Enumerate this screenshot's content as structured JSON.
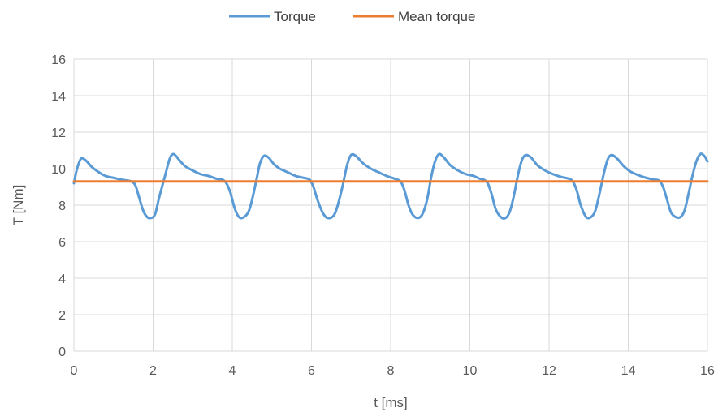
{
  "chart_data": {
    "type": "line",
    "xlabel": "t [ms]",
    "ylabel": "T [Nm]",
    "xlim": [
      0,
      16
    ],
    "ylim": [
      0,
      16
    ],
    "x_ticks": [
      0,
      2,
      4,
      6,
      8,
      10,
      12,
      14,
      16
    ],
    "y_ticks": [
      0,
      2,
      4,
      6,
      8,
      10,
      12,
      14,
      16
    ],
    "grid": true,
    "legend_position": "top-center",
    "series": [
      {
        "name": "Torque",
        "color": "#5b9bd5",
        "points": [
          [
            0.0,
            9.2
          ],
          [
            0.08,
            10.0
          ],
          [
            0.18,
            10.55
          ],
          [
            0.3,
            10.45
          ],
          [
            0.45,
            10.1
          ],
          [
            0.6,
            9.85
          ],
          [
            0.8,
            9.6
          ],
          [
            1.0,
            9.5
          ],
          [
            1.2,
            9.4
          ],
          [
            1.35,
            9.35
          ],
          [
            1.45,
            9.3
          ],
          [
            1.55,
            9.1
          ],
          [
            1.65,
            8.4
          ],
          [
            1.75,
            7.7
          ],
          [
            1.85,
            7.35
          ],
          [
            1.95,
            7.3
          ],
          [
            2.05,
            7.5
          ],
          [
            2.15,
            8.4
          ],
          [
            2.3,
            9.6
          ],
          [
            2.42,
            10.55
          ],
          [
            2.52,
            10.8
          ],
          [
            2.65,
            10.5
          ],
          [
            2.8,
            10.15
          ],
          [
            3.0,
            9.9
          ],
          [
            3.2,
            9.7
          ],
          [
            3.4,
            9.6
          ],
          [
            3.6,
            9.45
          ],
          [
            3.75,
            9.4
          ],
          [
            3.85,
            9.2
          ],
          [
            3.95,
            8.7
          ],
          [
            4.05,
            7.9
          ],
          [
            4.15,
            7.4
          ],
          [
            4.25,
            7.3
          ],
          [
            4.4,
            7.6
          ],
          [
            4.5,
            8.3
          ],
          [
            4.62,
            9.5
          ],
          [
            4.7,
            10.3
          ],
          [
            4.8,
            10.7
          ],
          [
            4.92,
            10.6
          ],
          [
            5.05,
            10.25
          ],
          [
            5.2,
            10.0
          ],
          [
            5.4,
            9.8
          ],
          [
            5.6,
            9.6
          ],
          [
            5.8,
            9.5
          ],
          [
            5.95,
            9.4
          ],
          [
            6.05,
            9.0
          ],
          [
            6.15,
            8.3
          ],
          [
            6.28,
            7.6
          ],
          [
            6.4,
            7.3
          ],
          [
            6.55,
            7.4
          ],
          [
            6.65,
            7.9
          ],
          [
            6.78,
            9.0
          ],
          [
            6.9,
            10.2
          ],
          [
            7.0,
            10.75
          ],
          [
            7.12,
            10.7
          ],
          [
            7.3,
            10.3
          ],
          [
            7.5,
            10.0
          ],
          [
            7.7,
            9.8
          ],
          [
            7.9,
            9.6
          ],
          [
            8.1,
            9.45
          ],
          [
            8.25,
            9.3
          ],
          [
            8.35,
            8.8
          ],
          [
            8.45,
            8.0
          ],
          [
            8.55,
            7.5
          ],
          [
            8.68,
            7.3
          ],
          [
            8.8,
            7.5
          ],
          [
            8.92,
            8.3
          ],
          [
            9.02,
            9.5
          ],
          [
            9.12,
            10.4
          ],
          [
            9.22,
            10.8
          ],
          [
            9.35,
            10.6
          ],
          [
            9.5,
            10.2
          ],
          [
            9.7,
            9.9
          ],
          [
            9.9,
            9.7
          ],
          [
            10.1,
            9.6
          ],
          [
            10.25,
            9.45
          ],
          [
            10.35,
            9.4
          ],
          [
            10.45,
            9.2
          ],
          [
            10.55,
            8.6
          ],
          [
            10.65,
            7.8
          ],
          [
            10.78,
            7.35
          ],
          [
            10.9,
            7.3
          ],
          [
            11.0,
            7.6
          ],
          [
            11.1,
            8.4
          ],
          [
            11.22,
            9.7
          ],
          [
            11.32,
            10.5
          ],
          [
            11.42,
            10.75
          ],
          [
            11.55,
            10.6
          ],
          [
            11.7,
            10.2
          ],
          [
            11.9,
            9.9
          ],
          [
            12.1,
            9.7
          ],
          [
            12.3,
            9.55
          ],
          [
            12.5,
            9.45
          ],
          [
            12.6,
            9.3
          ],
          [
            12.7,
            8.8
          ],
          [
            12.8,
            8.0
          ],
          [
            12.92,
            7.4
          ],
          [
            13.02,
            7.3
          ],
          [
            13.15,
            7.6
          ],
          [
            13.25,
            8.4
          ],
          [
            13.38,
            9.7
          ],
          [
            13.48,
            10.5
          ],
          [
            13.58,
            10.75
          ],
          [
            13.72,
            10.55
          ],
          [
            13.88,
            10.15
          ],
          [
            14.05,
            9.85
          ],
          [
            14.25,
            9.65
          ],
          [
            14.45,
            9.5
          ],
          [
            14.65,
            9.4
          ],
          [
            14.78,
            9.35
          ],
          [
            14.88,
            9.0
          ],
          [
            14.98,
            8.3
          ],
          [
            15.08,
            7.6
          ],
          [
            15.2,
            7.35
          ],
          [
            15.32,
            7.35
          ],
          [
            15.42,
            7.7
          ],
          [
            15.52,
            8.6
          ],
          [
            15.62,
            9.6
          ],
          [
            15.72,
            10.4
          ],
          [
            15.82,
            10.8
          ],
          [
            15.92,
            10.7
          ],
          [
            16.0,
            10.4
          ]
        ]
      },
      {
        "name": "Mean torque",
        "color": "#ed7d31",
        "points": [
          [
            0,
            9.3
          ],
          [
            16,
            9.3
          ]
        ]
      }
    ]
  }
}
